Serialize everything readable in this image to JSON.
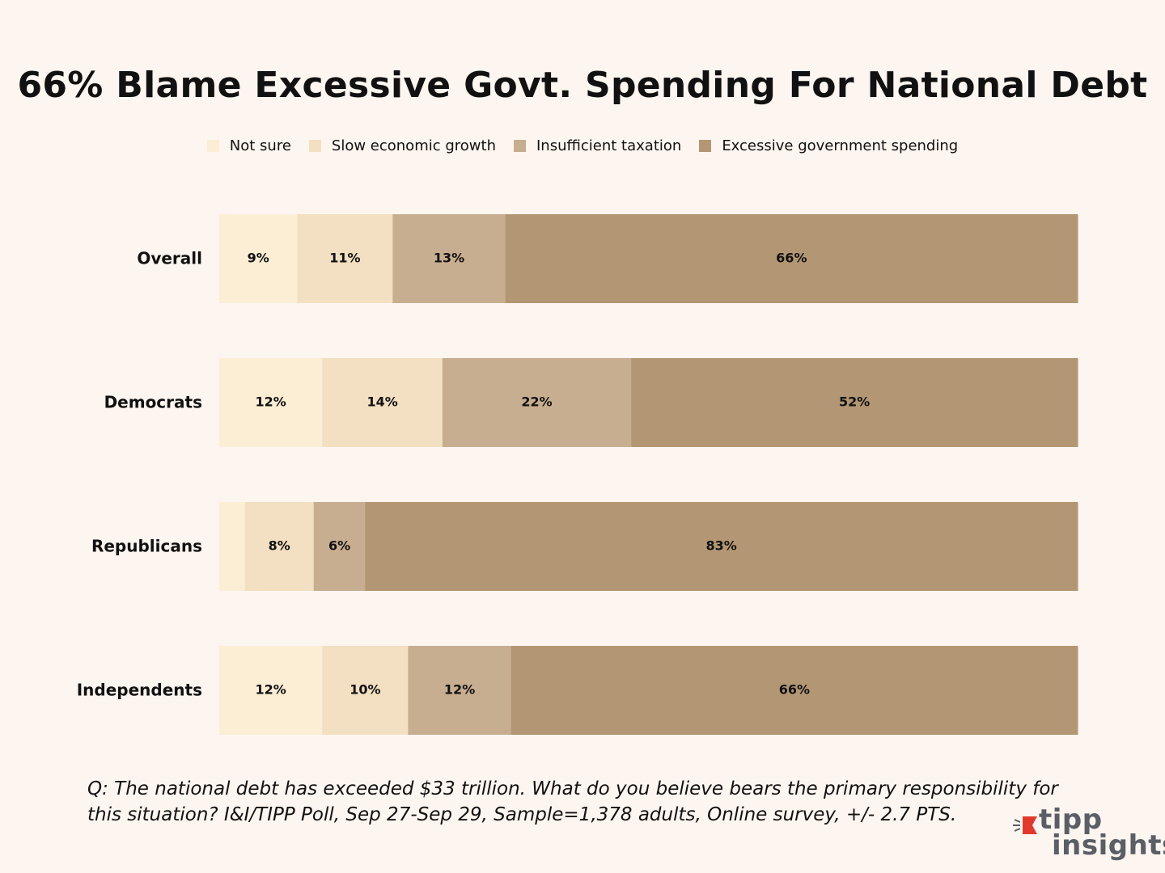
{
  "chart_data": {
    "type": "bar",
    "orientation": "horizontal",
    "stacked": true,
    "title": "66% Blame Excessive Govt. Spending For National Debt",
    "categories": [
      "Overall",
      "Democrats",
      "Republicans",
      "Independents"
    ],
    "series": [
      {
        "name": "Not sure",
        "color": "#fbeed4",
        "values": [
          9,
          12,
          3,
          12
        ],
        "labels": [
          "9%",
          "12%",
          "",
          "12%"
        ]
      },
      {
        "name": "Slow economic growth",
        "color": "#f3dfc1",
        "values": [
          11,
          14,
          8,
          10
        ],
        "labels": [
          "11%",
          "14%",
          "8%",
          "10%"
        ]
      },
      {
        "name": "Insufficient taxation",
        "color": "#c8ae90",
        "values": [
          13,
          22,
          6,
          12
        ],
        "labels": [
          "13%",
          "22%",
          "6%",
          "12%"
        ]
      },
      {
        "name": "Excessive government spending",
        "color": "#b39673",
        "values": [
          66,
          52,
          83,
          66
        ],
        "labels": [
          "66%",
          "52%",
          "83%",
          "66%"
        ]
      }
    ],
    "xlabel": "",
    "ylabel": "",
    "legend_position": "top",
    "grid": false
  },
  "footnote": "Q: The national debt has exceeded $33 trillion. What do you believe bears the primary responsibility for this situation?  I&I/TIPP Poll, Sep 27-Sep 29, Sample=1,378 adults, Online survey, +/- 2.7 PTS.",
  "logo": {
    "line1": "tipp",
    "line2": "insights",
    "accent_color": "#e03a2f",
    "text_color": "#5a5f66"
  }
}
